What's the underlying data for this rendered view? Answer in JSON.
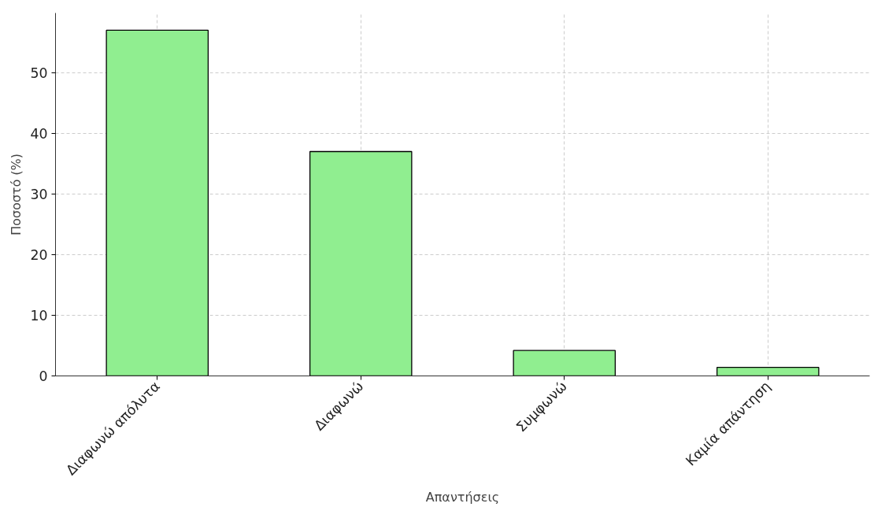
{
  "chart_data": {
    "type": "bar",
    "xlabel": "Απαντήσεις",
    "ylabel": "Ποσοστό (%)",
    "categories": [
      "Διαφωνώ απόλυτα",
      "Διαφωνώ",
      "Συμφωνώ",
      "Καμία απάντηση"
    ],
    "values": [
      57,
      37,
      4.2,
      1.4
    ],
    "color": "#90ee90",
    "ylim": [
      0,
      59.85
    ],
    "yticks": [
      0,
      10,
      20,
      30,
      40,
      50
    ],
    "grid": true
  }
}
